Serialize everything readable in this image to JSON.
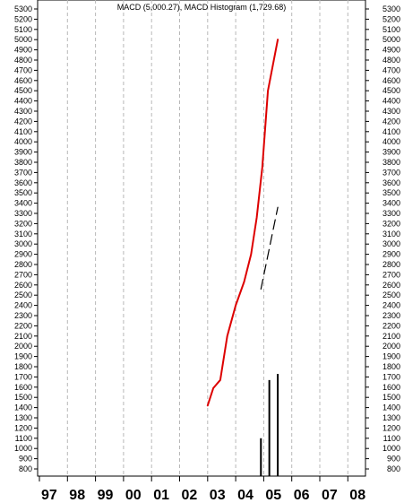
{
  "chart_data": {
    "type": "line",
    "title": "MACD (5,000.27), MACD Histogram (1,729.68)",
    "xlabel": "",
    "ylabel": "",
    "x_categories": [
      "97",
      "98",
      "99",
      "00",
      "01",
      "02",
      "03",
      "04",
      "05",
      "06",
      "07",
      "08"
    ],
    "ylim": [
      700,
      5400
    ],
    "y_ticks": [
      800,
      900,
      1000,
      1100,
      1200,
      1300,
      1400,
      1500,
      1600,
      1700,
      1800,
      1900,
      2000,
      2100,
      2200,
      2300,
      2400,
      2500,
      2600,
      2700,
      2800,
      2900,
      3000,
      3100,
      3200,
      3300,
      3400,
      3500,
      3600,
      3700,
      3800,
      3900,
      4000,
      4100,
      4200,
      4300,
      4400,
      4500,
      4600,
      4700,
      4800,
      4900,
      5000,
      5100,
      5200,
      5300
    ],
    "grid": "vertical dashed",
    "series": [
      {
        "type": "line",
        "color": "#dd0000",
        "style": "solid",
        "points": [
          [
            2003.0,
            1420
          ],
          [
            2003.2,
            1590
          ],
          [
            2003.45,
            1670
          ],
          [
            2003.7,
            2100
          ],
          [
            2004.0,
            2400
          ],
          [
            2004.3,
            2630
          ],
          [
            2004.55,
            2900
          ],
          [
            2004.75,
            3260
          ],
          [
            2004.95,
            3750
          ],
          [
            2005.15,
            4500
          ],
          [
            2005.5,
            5000
          ]
        ]
      },
      {
        "type": "line",
        "color": "#000000",
        "style": "dashed",
        "points": [
          [
            2004.9,
            2560
          ],
          [
            2005.2,
            2960
          ],
          [
            2005.5,
            3360
          ]
        ]
      },
      {
        "type": "bar",
        "color": "#000000",
        "points": [
          [
            2004.9,
            1100
          ],
          [
            2005.2,
            1670
          ],
          [
            2005.5,
            1730
          ]
        ]
      }
    ]
  }
}
